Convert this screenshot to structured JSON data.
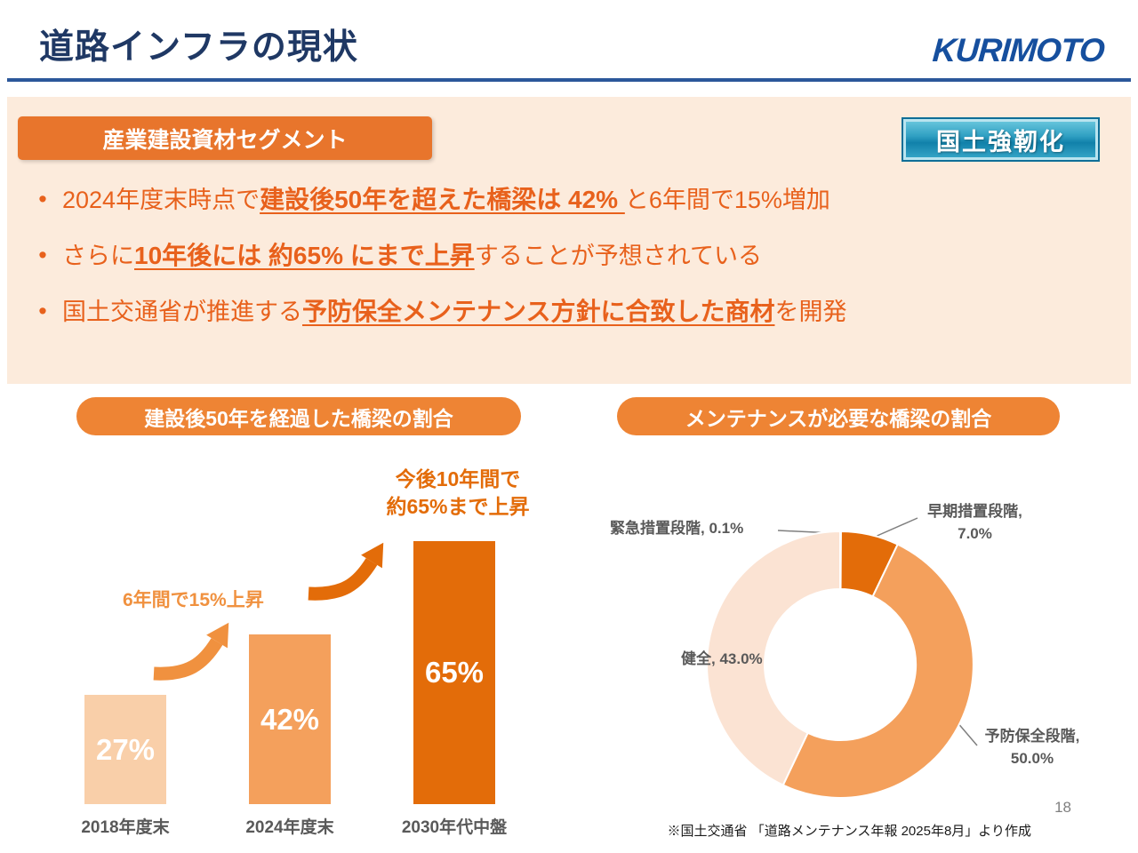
{
  "header": {
    "title": "道路インフラの現状",
    "logo": "KURIMOTO"
  },
  "badges": {
    "segment": "産業建設資材セグメント",
    "resilience": "国土強靭化"
  },
  "misc": {
    "bullet_marker": "•"
  },
  "colors": {
    "navy_title": "#1f3864",
    "brand_blue": "#164f9e",
    "header_rule_blue": "#2b579a",
    "panel_peach": "#fcebdc",
    "accent_orange": "#e8752c",
    "bullet_orange": "#e8611c",
    "dark_orange": "#e36c09",
    "mid_orange": "#f4a05c",
    "light_peach": "#f9cfa9",
    "teal_badge": "#1181aa"
  },
  "bullets": [
    {
      "pre": "2024年度末時点で",
      "strong": "建設後50年を超えた橋梁は 42% ",
      "post": "と6年間で15%増加"
    },
    {
      "pre": "さらに",
      "strong": "10年後には 約65% にまで上昇",
      "post": "することが予想されている"
    },
    {
      "pre": "国土交通省が推進する",
      "strong": "予防保全メンテナンス方針に合致した商材",
      "post": "を開発"
    }
  ],
  "chart_data": [
    {
      "type": "bar",
      "title": "建設後50年を経過した橋梁の割合",
      "categories": [
        "2018年度末",
        "2024年度末",
        "2030年代中盤"
      ],
      "values": [
        27,
        42,
        65
      ],
      "value_labels": [
        "27%",
        "42%",
        "65%"
      ],
      "bar_colors": [
        "#f9cfa9",
        "#f4a05c",
        "#e36c09"
      ],
      "ylim": [
        0,
        70
      ],
      "grid": false,
      "annotations": [
        {
          "text": "6年間で15%上昇"
        },
        {
          "text": "今後10年間で\n約65%まで上昇"
        }
      ]
    },
    {
      "type": "pie",
      "subtype": "donut",
      "title": "メンテナンスが必要な橋梁の割合",
      "segments": [
        {
          "label": "緊急措置段階",
          "value": 0.1,
          "display": "緊急措置段階, 0.1%",
          "color": "#bfbfbf"
        },
        {
          "label": "早期措置段階",
          "value": 7.0,
          "display": "早期措置段階,\n7.0%",
          "color": "#e36c09"
        },
        {
          "label": "予防保全段階",
          "value": 50.0,
          "display": "予防保全段階,\n50.0%",
          "color": "#f4a05c"
        },
        {
          "label": "健全",
          "value": 43.0,
          "display": "健全, 43.0%",
          "color": "#fbe3d3"
        }
      ]
    }
  ],
  "footer": {
    "page_number": "18",
    "source_note": "※国土交通省 「道路メンテナンス年報 2025年8月」より作成"
  }
}
